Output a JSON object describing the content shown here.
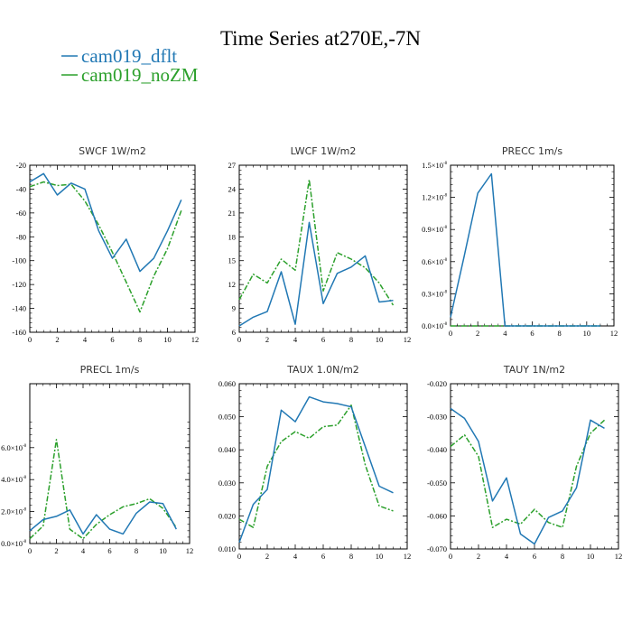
{
  "figure": {
    "title": "Time Series at270E,-7N",
    "legend": [
      {
        "label": "cam019_dflt",
        "color": "#2178b4"
      },
      {
        "label": "cam019_noZM",
        "color": "#2ca02c"
      }
    ]
  },
  "chart_data": [
    {
      "type": "line",
      "title": "SWCF   1W/m2",
      "x": [
        0,
        1,
        2,
        3,
        4,
        5,
        6,
        7,
        8,
        9,
        10,
        11
      ],
      "xlim": [
        0,
        12
      ],
      "xticks": [
        0,
        2,
        4,
        6,
        8,
        10,
        12
      ],
      "ylim": [
        -160,
        -20
      ],
      "yticks": [
        -160,
        -140,
        -120,
        -100,
        -80,
        -60,
        -40,
        -20
      ],
      "ytick_labels": [
        "-160",
        "-140",
        "-120",
        "-100",
        "-80",
        "-60",
        "-40",
        "-20"
      ],
      "series": [
        {
          "name": "cam019_dflt",
          "values": [
            -34,
            -27,
            -45,
            -35,
            -40,
            -75,
            -98,
            -82,
            -109,
            -98,
            -75,
            -49
          ]
        },
        {
          "name": "cam019_noZM",
          "values": [
            -38,
            -34,
            -37,
            -36,
            -50,
            -70,
            -93,
            -118,
            -143,
            -113,
            -90,
            -58
          ]
        }
      ]
    },
    {
      "type": "line",
      "title": "LWCF   1W/m2",
      "x": [
        0,
        1,
        2,
        3,
        4,
        5,
        6,
        7,
        8,
        9,
        10,
        11
      ],
      "xlim": [
        0,
        12
      ],
      "xticks": [
        0,
        2,
        4,
        6,
        8,
        10,
        12
      ],
      "ylim": [
        6,
        27
      ],
      "yticks": [
        6,
        9,
        12,
        15,
        18,
        21,
        24,
        27
      ],
      "ytick_labels": [
        "6",
        "9",
        "12",
        "15",
        "18",
        "21",
        "24",
        "27"
      ],
      "series": [
        {
          "name": "cam019_dflt",
          "values": [
            6.8,
            7.9,
            8.6,
            13.6,
            7.0,
            19.8,
            9.6,
            13.4,
            14.2,
            15.6,
            9.8,
            10.0
          ]
        },
        {
          "name": "cam019_noZM",
          "values": [
            10.1,
            13.3,
            12.2,
            15.2,
            13.8,
            25.2,
            11.2,
            16.0,
            15.2,
            14.1,
            12.2,
            9.4
          ]
        }
      ]
    },
    {
      "type": "line",
      "title": "PRECC   1m/s",
      "x": [
        0,
        1,
        2,
        3,
        4,
        5,
        6,
        7,
        8,
        9,
        10,
        11
      ],
      "xlim": [
        0,
        12
      ],
      "xticks": [
        0,
        2,
        4,
        6,
        8,
        10,
        12
      ],
      "ylim": [
        0,
        1.5
      ],
      "yticks": [
        0,
        0.3,
        0.6,
        0.9,
        1.2,
        1.5
      ],
      "ytick_labels": [
        "0.0×10",
        "0.3×10",
        "0.6×10",
        "0.9×10",
        "1.2×10",
        "1.5×10"
      ],
      "ytick_exponent": "-8",
      "series": [
        {
          "name": "cam019_dflt",
          "values": [
            0.08,
            0.65,
            1.24,
            1.42,
            0.0,
            0.0,
            0.0,
            0.0,
            0.0,
            0.0,
            0.0,
            0.0
          ]
        },
        {
          "name": "cam019_noZM",
          "values": [
            0,
            0,
            0,
            0,
            0,
            0,
            0,
            0,
            0,
            0,
            0,
            0
          ]
        }
      ]
    },
    {
      "type": "line",
      "title": "PRECL   1m/s",
      "x": [
        0,
        1,
        2,
        3,
        4,
        5,
        6,
        7,
        8,
        9,
        10,
        11
      ],
      "xlim": [
        0,
        12
      ],
      "xticks": [
        0,
        2,
        4,
        6,
        8,
        10,
        12
      ],
      "ylim": [
        0,
        10
      ],
      "yticks": [
        0,
        2,
        4,
        6
      ],
      "ytick_labels": [
        "0.0×10",
        "2.0×10",
        "4.0×10",
        "6.0×10"
      ],
      "ytick_exponent": "-8",
      "series": [
        {
          "name": "cam019_dflt",
          "values": [
            0.8,
            1.5,
            1.7,
            2.1,
            0.6,
            1.8,
            0.9,
            0.6,
            1.9,
            2.6,
            2.5,
            0.9
          ]
        },
        {
          "name": "cam019_noZM",
          "values": [
            0.3,
            1.1,
            6.5,
            0.9,
            0.3,
            1.2,
            1.8,
            2.3,
            2.5,
            2.8,
            2.2,
            1.0
          ]
        }
      ]
    },
    {
      "type": "line",
      "title": "TAUX   1.0N/m2",
      "x": [
        0,
        1,
        2,
        3,
        4,
        5,
        6,
        7,
        8,
        9,
        10,
        11
      ],
      "xlim": [
        0,
        12
      ],
      "xticks": [
        0,
        2,
        4,
        6,
        8,
        10,
        12
      ],
      "ylim": [
        0.01,
        0.06
      ],
      "yticks": [
        0.01,
        0.02,
        0.03,
        0.04,
        0.05,
        0.06
      ],
      "ytick_labels": [
        "0.010",
        "0.020",
        "0.030",
        "0.040",
        "0.050",
        "0.060"
      ],
      "series": [
        {
          "name": "cam019_dflt",
          "values": [
            0.012,
            0.0235,
            0.028,
            0.052,
            0.0485,
            0.056,
            0.0545,
            0.054,
            0.053,
            0.041,
            0.029,
            0.027
          ]
        },
        {
          "name": "cam019_noZM",
          "values": [
            0.019,
            0.0165,
            0.035,
            0.0425,
            0.0455,
            0.0435,
            0.047,
            0.0475,
            0.0535,
            0.0355,
            0.023,
            0.0215
          ]
        }
      ]
    },
    {
      "type": "line",
      "title": "TAUY   1N/m2",
      "x": [
        0,
        1,
        2,
        3,
        4,
        5,
        6,
        7,
        8,
        9,
        10,
        11
      ],
      "xlim": [
        0,
        12
      ],
      "xticks": [
        0,
        2,
        4,
        6,
        8,
        10,
        12
      ],
      "ylim": [
        -0.07,
        -0.02
      ],
      "yticks": [
        -0.07,
        -0.06,
        -0.05,
        -0.04,
        -0.03,
        -0.02
      ],
      "ytick_labels": [
        "-0.070",
        "-0.060",
        "-0.050",
        "-0.040",
        "-0.030",
        "-0.020"
      ],
      "series": [
        {
          "name": "cam019_dflt",
          "values": [
            -0.0275,
            -0.0305,
            -0.0375,
            -0.0555,
            -0.0485,
            -0.0655,
            -0.0685,
            -0.0605,
            -0.0585,
            -0.0515,
            -0.031,
            -0.0335
          ]
        },
        {
          "name": "cam019_noZM",
          "values": [
            -0.039,
            -0.0355,
            -0.042,
            -0.0635,
            -0.061,
            -0.0625,
            -0.058,
            -0.062,
            -0.0635,
            -0.045,
            -0.035,
            -0.031
          ]
        }
      ]
    }
  ]
}
